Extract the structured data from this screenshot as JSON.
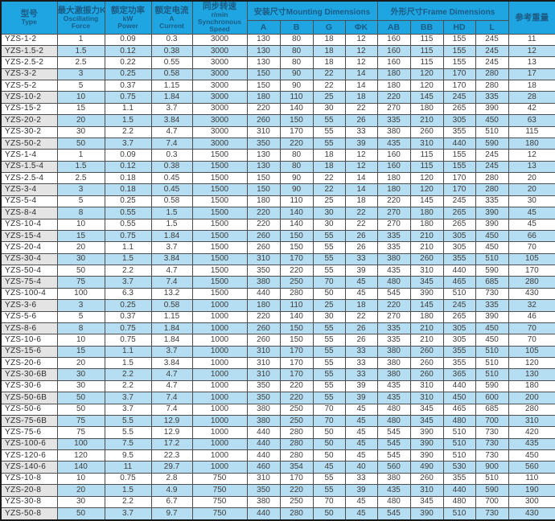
{
  "colors": {
    "header_bg": "#1fa6e2",
    "header_text": "#1b5c85",
    "row_alt_bg": "#b5def2",
    "model_alt_bg": "#e4e4e4",
    "border": "#4d4d4d"
  },
  "table": {
    "header": {
      "type_zh": "型号",
      "type_en": "Type",
      "force_zh": "最大激振力KN",
      "force_en": "Oscillating Force",
      "power_zh": "额定功率",
      "power_unit": "kW",
      "power_en": "Power",
      "current_zh": "额定电流",
      "current_unit": "A",
      "current_en": "Current",
      "speed_zh": "同步转速",
      "speed_unit": "r/min",
      "speed_en": "Synchronous Speed",
      "mounting_group": "安装尺寸Mounting Dimensions",
      "frame_group": "外形尺寸Frame Dimensions",
      "weight": "参考重量",
      "sub_columns": [
        "A",
        "B",
        "G",
        "ΦK",
        "AB",
        "BB",
        "HD",
        "L"
      ]
    },
    "rows": [
      [
        "YZS-1-2",
        "1",
        "0.09",
        "0.3",
        "3000",
        "130",
        "80",
        "18",
        "12",
        "160",
        "115",
        "155",
        "245",
        "11"
      ],
      [
        "YZS-1.5-2",
        "1.5",
        "0.12",
        "0.38",
        "3000",
        "130",
        "80",
        "18",
        "12",
        "160",
        "115",
        "155",
        "245",
        "12"
      ],
      [
        "YZS-2.5-2",
        "2.5",
        "0.22",
        "0.55",
        "3000",
        "130",
        "80",
        "18",
        "12",
        "160",
        "115",
        "155",
        "245",
        "13"
      ],
      [
        "YZS-3-2",
        "3",
        "0.25",
        "0.58",
        "3000",
        "150",
        "90",
        "22",
        "14",
        "180",
        "120",
        "170",
        "280",
        "17"
      ],
      [
        "YZS-5-2",
        "5",
        "0.37",
        "1.15",
        "3000",
        "150",
        "90",
        "22",
        "14",
        "180",
        "120",
        "170",
        "280",
        "18"
      ],
      [
        "YZS-10-2",
        "10",
        "0.75",
        "1.84",
        "3000",
        "180",
        "110",
        "25",
        "18",
        "220",
        "145",
        "245",
        "335",
        "28"
      ],
      [
        "YZS-15-2",
        "15",
        "1.1",
        "3.7",
        "3000",
        "220",
        "140",
        "30",
        "22",
        "270",
        "180",
        "265",
        "390",
        "42"
      ],
      [
        "YZS-20-2",
        "20",
        "1.5",
        "3.84",
        "3000",
        "260",
        "150",
        "55",
        "26",
        "335",
        "210",
        "305",
        "450",
        "63"
      ],
      [
        "YZS-30-2",
        "30",
        "2.2",
        "4.7",
        "3000",
        "310",
        "170",
        "55",
        "33",
        "380",
        "260",
        "355",
        "510",
        "115"
      ],
      [
        "YZS-50-2",
        "50",
        "3.7",
        "7.4",
        "3000",
        "350",
        "220",
        "55",
        "39",
        "435",
        "310",
        "440",
        "590",
        "180"
      ],
      [
        "YZS-1-4",
        "1",
        "0.09",
        "0.3",
        "1500",
        "130",
        "80",
        "18",
        "12",
        "160",
        "115",
        "155",
        "245",
        "12"
      ],
      [
        "YZS-1.5-4",
        "1.5",
        "0.12",
        "0.38",
        "1500",
        "130",
        "80",
        "18",
        "12",
        "160",
        "115",
        "155",
        "245",
        "13"
      ],
      [
        "YZS-2.5-4",
        "2.5",
        "0.18",
        "0.45",
        "1500",
        "150",
        "90",
        "22",
        "14",
        "180",
        "120",
        "170",
        "280",
        "20"
      ],
      [
        "YZS-3-4",
        "3",
        "0.18",
        "0.45",
        "1500",
        "150",
        "90",
        "22",
        "14",
        "180",
        "120",
        "170",
        "280",
        "20"
      ],
      [
        "YZS-5-4",
        "5",
        "0.25",
        "0.58",
        "1500",
        "180",
        "110",
        "25",
        "18",
        "220",
        "145",
        "245",
        "335",
        "30"
      ],
      [
        "YZS-8-4",
        "8",
        "0.55",
        "1.5",
        "1500",
        "220",
        "140",
        "30",
        "22",
        "270",
        "180",
        "265",
        "390",
        "45"
      ],
      [
        "YZS-10-4",
        "10",
        "0.55",
        "1.5",
        "1500",
        "220",
        "140",
        "30",
        "22",
        "270",
        "180",
        "265",
        "390",
        "45"
      ],
      [
        "YZS-15-4",
        "15",
        "0.75",
        "1.84",
        "1500",
        "260",
        "150",
        "55",
        "26",
        "335",
        "210",
        "305",
        "450",
        "66"
      ],
      [
        "YZS-20-4",
        "20",
        "1.1",
        "3.7",
        "1500",
        "260",
        "150",
        "55",
        "26",
        "335",
        "210",
        "305",
        "450",
        "70"
      ],
      [
        "YZS-30-4",
        "30",
        "1.5",
        "3.84",
        "1500",
        "310",
        "170",
        "55",
        "33",
        "380",
        "260",
        "355",
        "510",
        "105"
      ],
      [
        "YZS-50-4",
        "50",
        "2.2",
        "4.7",
        "1500",
        "350",
        "220",
        "55",
        "39",
        "435",
        "310",
        "440",
        "590",
        "170"
      ],
      [
        "YZS-75-4",
        "75",
        "3.7",
        "7.4",
        "1500",
        "380",
        "250",
        "70",
        "45",
        "480",
        "345",
        "465",
        "685",
        "280"
      ],
      [
        "YZS-100-4",
        "100",
        "6.3",
        "13.2",
        "1500",
        "440",
        "280",
        "50",
        "45",
        "545",
        "390",
        "510",
        "730",
        "430"
      ],
      [
        "YZS-3-6",
        "3",
        "0.25",
        "0.58",
        "1000",
        "180",
        "110",
        "25",
        "18",
        "220",
        "145",
        "245",
        "335",
        "32"
      ],
      [
        "YZS-5-6",
        "5",
        "0.37",
        "1.15",
        "1000",
        "220",
        "140",
        "30",
        "22",
        "270",
        "180",
        "265",
        "390",
        "46"
      ],
      [
        "YZS-8-6",
        "8",
        "0.75",
        "1.84",
        "1000",
        "260",
        "150",
        "55",
        "26",
        "335",
        "210",
        "305",
        "450",
        "70"
      ],
      [
        "YZS-10-6",
        "10",
        "0.75",
        "1.84",
        "1000",
        "260",
        "150",
        "55",
        "26",
        "335",
        "210",
        "305",
        "450",
        "70"
      ],
      [
        "YZS-15-6",
        "15",
        "1.1",
        "3.7",
        "1000",
        "310",
        "170",
        "55",
        "33",
        "380",
        "260",
        "355",
        "510",
        "105"
      ],
      [
        "YZS-20-6",
        "20",
        "1.5",
        "3.84",
        "1000",
        "310",
        "170",
        "55",
        "33",
        "380",
        "260",
        "355",
        "510",
        "120"
      ],
      [
        "YZS-30-6B",
        "30",
        "2.2",
        "4.7",
        "1000",
        "310",
        "170",
        "55",
        "33",
        "380",
        "260",
        "365",
        "510",
        "130"
      ],
      [
        "YZS-30-6",
        "30",
        "2.2",
        "4.7",
        "1000",
        "350",
        "220",
        "55",
        "39",
        "435",
        "310",
        "440",
        "590",
        "180"
      ],
      [
        "YZS-50-6B",
        "50",
        "3.7",
        "7.4",
        "1000",
        "350",
        "220",
        "55",
        "39",
        "435",
        "310",
        "450",
        "600",
        "200"
      ],
      [
        "YZS-50-6",
        "50",
        "3.7",
        "7.4",
        "1000",
        "380",
        "250",
        "70",
        "45",
        "480",
        "345",
        "465",
        "685",
        "280"
      ],
      [
        "YZS-75-6B",
        "75",
        "5.5",
        "12.9",
        "1000",
        "380",
        "250",
        "70",
        "45",
        "480",
        "345",
        "480",
        "700",
        "310"
      ],
      [
        "YZS-75-6",
        "75",
        "5.5",
        "12.9",
        "1000",
        "440",
        "280",
        "50",
        "45",
        "545",
        "390",
        "510",
        "730",
        "420"
      ],
      [
        "YZS-100-6",
        "100",
        "7.5",
        "17.2",
        "1000",
        "440",
        "280",
        "50",
        "45",
        "545",
        "390",
        "510",
        "730",
        "435"
      ],
      [
        "YZS-120-6",
        "120",
        "9.5",
        "22.3",
        "1000",
        "440",
        "280",
        "50",
        "45",
        "545",
        "390",
        "510",
        "730",
        "450"
      ],
      [
        "YZS-140-6",
        "140",
        "11",
        "29.7",
        "1000",
        "460",
        "354",
        "45",
        "40",
        "560",
        "490",
        "530",
        "900",
        "560"
      ],
      [
        "YZS-10-8",
        "10",
        "0.75",
        "2.8",
        "750",
        "310",
        "170",
        "55",
        "33",
        "380",
        "260",
        "355",
        "510",
        "110"
      ],
      [
        "YZS-20-8",
        "20",
        "1.5",
        "4.9",
        "750",
        "350",
        "220",
        "55",
        "39",
        "435",
        "310",
        "440",
        "590",
        "190"
      ],
      [
        "YZS-30-8",
        "30",
        "2.2",
        "6.7",
        "750",
        "380",
        "250",
        "70",
        "45",
        "480",
        "345",
        "480",
        "700",
        "300"
      ],
      [
        "YZS-50-8",
        "50",
        "3.7",
        "9.7",
        "750",
        "440",
        "280",
        "50",
        "45",
        "545",
        "390",
        "510",
        "730",
        "430"
      ]
    ]
  }
}
